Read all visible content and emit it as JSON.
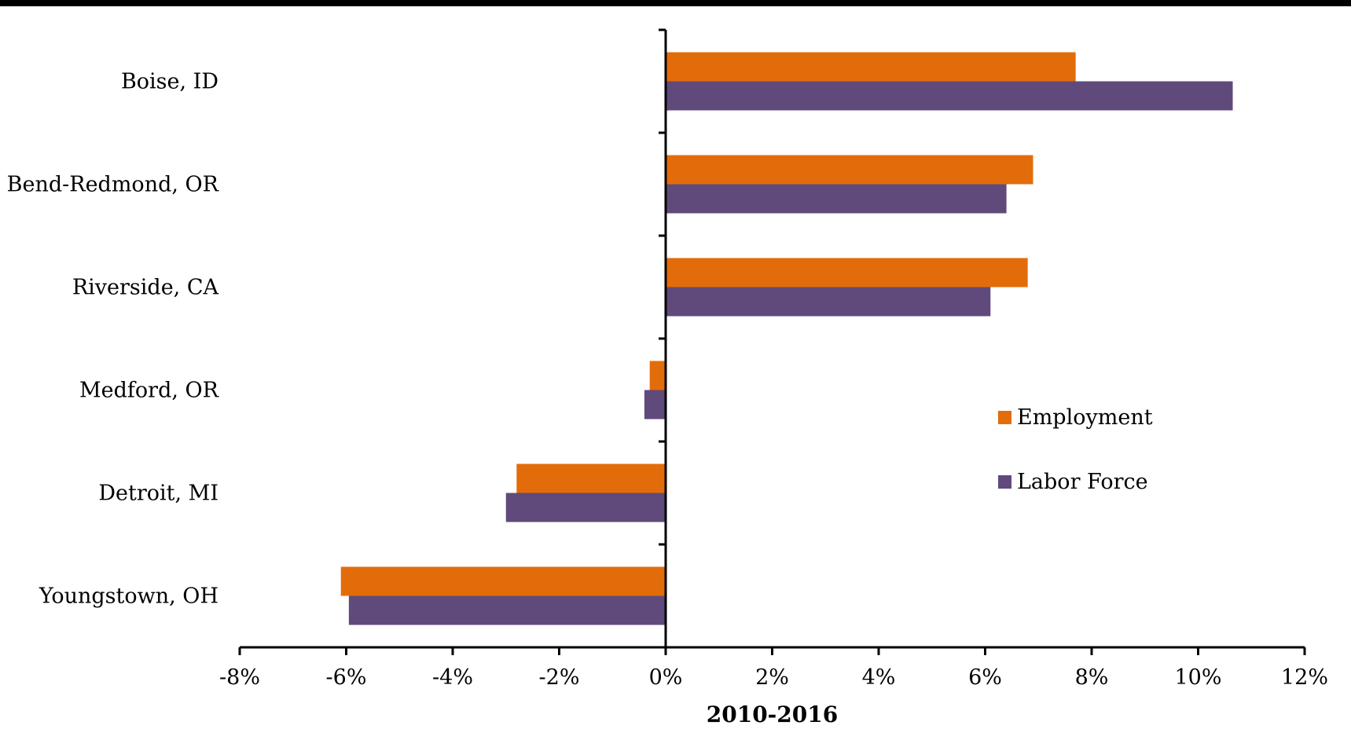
{
  "chart_data": {
    "type": "bar",
    "orientation": "horizontal",
    "categories": [
      "Boise, ID",
      "Bend-Redmond, OR",
      "Riverside, CA",
      "Medford, OR",
      "Detroit, MI",
      "Youngstown, OH"
    ],
    "series": [
      {
        "name": "Employment",
        "color": "#E36C0A",
        "values": [
          7.7,
          6.9,
          6.8,
          -0.3,
          -2.8,
          -6.1
        ]
      },
      {
        "name": "Labor Force",
        "color": "#604A7B",
        "values": [
          10.65,
          6.4,
          6.1,
          -0.4,
          -3.0,
          -5.95
        ]
      }
    ],
    "title": "",
    "xlabel": "2010-2016",
    "ylabel": "",
    "xlim": [
      -8,
      12
    ],
    "xticks": [
      -8,
      -6,
      -4,
      -2,
      0,
      2,
      4,
      6,
      8,
      10,
      12
    ],
    "xtick_labels": [
      "-8%",
      "-6%",
      "-4%",
      "-2%",
      "0%",
      "2%",
      "4%",
      "6%",
      "8%",
      "10%",
      "12%"
    ],
    "grid": false,
    "legend_position": "right"
  },
  "top_bar_color": "#000000"
}
